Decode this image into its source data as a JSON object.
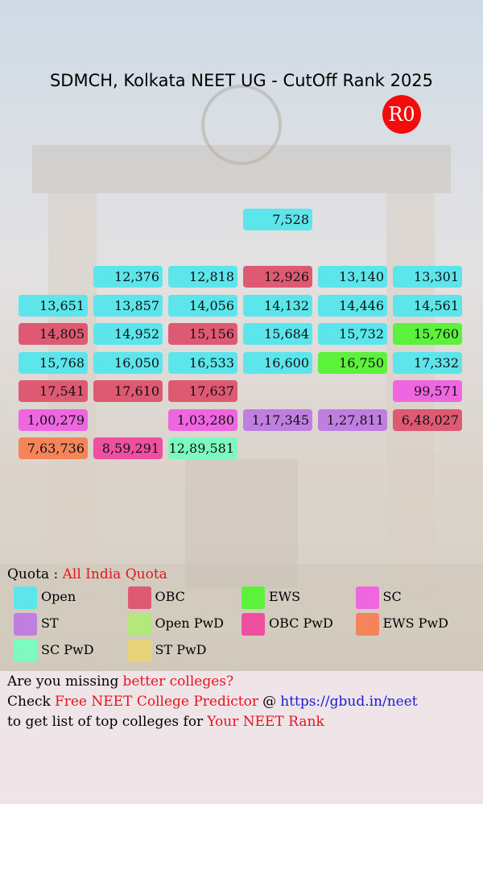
{
  "header": {
    "title": "SDMCH, Kolkata NEET UG - CutOff Rank 2025",
    "round": "R0"
  },
  "grid": {
    "rows": [
      [
        null,
        null,
        null,
        {
          "text": "7,528",
          "category": "Open"
        },
        null,
        null
      ],
      [
        null,
        null,
        null,
        null,
        null,
        null
      ],
      [
        null,
        {
          "text": "12,376",
          "category": "Open"
        },
        {
          "text": "12,818",
          "category": "Open"
        },
        {
          "text": "12,926",
          "category": "OBC"
        },
        {
          "text": "13,140",
          "category": "Open"
        },
        {
          "text": "13,301",
          "category": "Open"
        }
      ],
      [
        {
          "text": "13,651",
          "category": "Open"
        },
        {
          "text": "13,857",
          "category": "Open"
        },
        {
          "text": "14,056",
          "category": "Open"
        },
        {
          "text": "14,132",
          "category": "Open"
        },
        {
          "text": "14,446",
          "category": "Open"
        },
        {
          "text": "14,561",
          "category": "Open"
        }
      ],
      [
        {
          "text": "14,805",
          "category": "OBC"
        },
        {
          "text": "14,952",
          "category": "Open"
        },
        {
          "text": "15,156",
          "category": "OBC"
        },
        {
          "text": "15,684",
          "category": "Open"
        },
        {
          "text": "15,732",
          "category": "Open"
        },
        {
          "text": "15,760",
          "category": "EWS"
        }
      ],
      [
        {
          "text": "15,768",
          "category": "Open"
        },
        {
          "text": "16,050",
          "category": "Open"
        },
        {
          "text": "16,533",
          "category": "Open"
        },
        {
          "text": "16,600",
          "category": "Open"
        },
        {
          "text": "16,750",
          "category": "EWS"
        },
        {
          "text": "17,332",
          "category": "Open"
        }
      ],
      [
        {
          "text": "17,541",
          "category": "OBC"
        },
        {
          "text": "17,610",
          "category": "OBC"
        },
        {
          "text": "17,637",
          "category": "OBC"
        },
        null,
        null,
        {
          "text": "99,571",
          "category": "SC"
        }
      ],
      [
        {
          "text": "1,00,279",
          "category": "SC"
        },
        null,
        {
          "text": "1,03,280",
          "category": "SC"
        },
        {
          "text": "1,17,345",
          "category": "ST"
        },
        {
          "text": "1,27,811",
          "category": "ST"
        },
        {
          "text": "6,48,027",
          "category": "OBC"
        }
      ],
      [
        {
          "text": "7,63,736",
          "category": "EWS PwD"
        },
        {
          "text": "8,59,291",
          "category": "OBC PwD"
        },
        {
          "text": "12,89,581",
          "category": "SC PwD"
        },
        null,
        null,
        null
      ]
    ]
  },
  "quota": {
    "label": "Quota :",
    "value": "All India Quota"
  },
  "legend": [
    {
      "name": "Open",
      "color": "#5ce5eb"
    },
    {
      "name": "OBC",
      "color": "#de5a73"
    },
    {
      "name": "EWS",
      "color": "#5cf23c"
    },
    {
      "name": "SC",
      "color": "#ee66e0"
    },
    {
      "name": "ST",
      "color": "#c07fe0"
    },
    {
      "name": "Open PwD",
      "color": "#b5e87a"
    },
    {
      "name": "OBC PwD",
      "color": "#ee4fa0"
    },
    {
      "name": "EWS PwD",
      "color": "#f5845a"
    },
    {
      "name": "SC PwD",
      "color": "#7dfac0"
    },
    {
      "name": "ST PwD",
      "color": "#e8d27a"
    }
  ],
  "footer": {
    "lines": [
      [
        {
          "text": "Are you missing",
          "color": "#000000"
        },
        {
          "text": "better colleges?",
          "color": "#e8131c"
        }
      ],
      [
        {
          "text": "Check",
          "color": "#000000"
        },
        {
          "text": "Free NEET College Predictor",
          "color": "#e8131c"
        },
        {
          "text": "@",
          "color": "#000000"
        },
        {
          "text": "https://gbud.in/neet",
          "color": "#1a1adb"
        }
      ],
      [
        {
          "text": "to get list of top colleges for",
          "color": "#000000"
        },
        {
          "text": "Your NEET Rank",
          "color": "#e8131c"
        }
      ]
    ]
  }
}
